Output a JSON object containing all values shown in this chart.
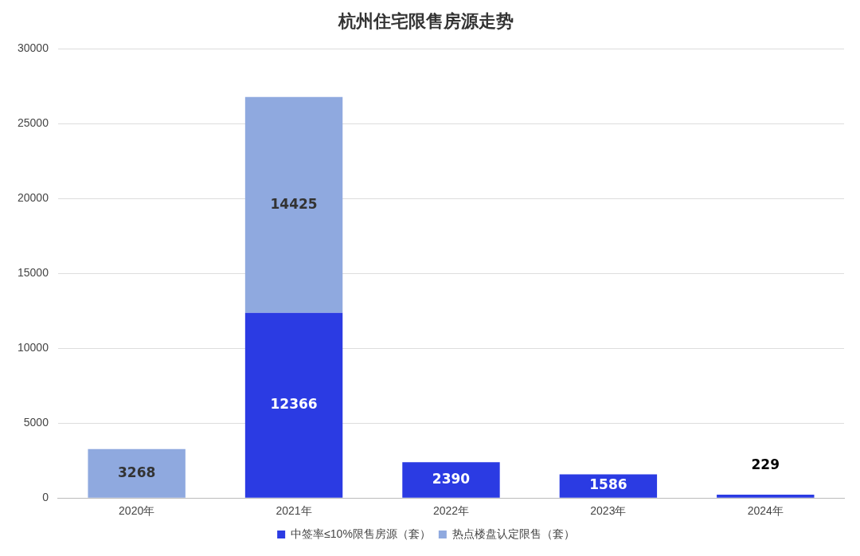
{
  "chart_data": {
    "type": "bar",
    "title": "杭州住宅限售房源走势",
    "categories": [
      "2020年",
      "2021年",
      "2022年",
      "2023年",
      "2024年"
    ],
    "series": [
      {
        "name": "中签率≤10%限售房源（套）",
        "color": "#2b3be3",
        "values": [
          null,
          12366,
          2390,
          1586,
          229
        ]
      },
      {
        "name": "热点楼盘认定限售（套）",
        "color": "#8fa9df",
        "values": [
          3268,
          14425,
          null,
          null,
          null
        ]
      }
    ],
    "stacked": true,
    "ylim": [
      0,
      30000
    ],
    "yticks": [
      0,
      5000,
      10000,
      15000,
      20000,
      25000,
      30000
    ],
    "grid": "y",
    "legend": "bottom",
    "data_labels": true
  }
}
